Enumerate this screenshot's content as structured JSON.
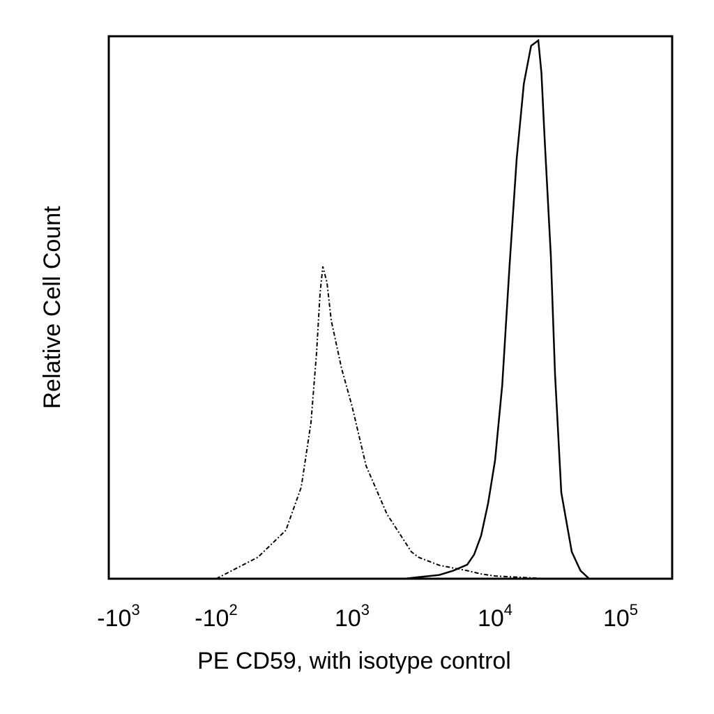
{
  "chart_data": {
    "type": "area",
    "xlabel": "PE CD59, with isotype control",
    "ylabel": "Relative Cell Count",
    "x_scale": "biexponential",
    "ticks": [
      {
        "value": -1000,
        "base": "-10",
        "exp": "3"
      },
      {
        "value": -100,
        "base": "-10",
        "exp": "2"
      },
      {
        "value": 1000,
        "base": "10",
        "exp": "3"
      },
      {
        "value": 10000,
        "base": "10",
        "exp": "4"
      },
      {
        "value": 100000,
        "base": "10",
        "exp": "5"
      }
    ],
    "ylim": [
      0,
      100
    ],
    "grid": false,
    "legend": "none",
    "series": [
      {
        "style": "dashed",
        "color": "#000000",
        "points": [
          [
            -100,
            0
          ],
          [
            0,
            4
          ],
          [
            100,
            9
          ],
          [
            200,
            17
          ],
          [
            300,
            29
          ],
          [
            400,
            42
          ],
          [
            500,
            53
          ],
          [
            600,
            58
          ],
          [
            700,
            55
          ],
          [
            800,
            48
          ],
          [
            900,
            39
          ],
          [
            1000,
            32
          ],
          [
            1200,
            21
          ],
          [
            1500,
            12
          ],
          [
            2000,
            7
          ],
          [
            2500,
            5
          ],
          [
            3000,
            4
          ],
          [
            4000,
            2.5
          ],
          [
            5000,
            2
          ],
          [
            6000,
            1.5
          ],
          [
            8000,
            0.9
          ],
          [
            10000,
            0.5
          ],
          [
            15000,
            0.15
          ],
          [
            20000,
            0
          ]
        ]
      },
      {
        "style": "solid",
        "color": "#000000",
        "points": [
          [
            2000,
            0
          ],
          [
            3000,
            0.3
          ],
          [
            4000,
            0.7
          ],
          [
            5000,
            1.5
          ],
          [
            6000,
            2.6
          ],
          [
            7000,
            4.5
          ],
          [
            8000,
            8
          ],
          [
            9000,
            14
          ],
          [
            10000,
            22
          ],
          [
            11000,
            36
          ],
          [
            12000,
            58
          ],
          [
            13000,
            78
          ],
          [
            14000,
            92
          ],
          [
            15000,
            99
          ],
          [
            16000,
            100
          ],
          [
            17000,
            94
          ],
          [
            18000,
            82
          ],
          [
            20000,
            60
          ],
          [
            22000,
            38
          ],
          [
            25000,
            16
          ],
          [
            30000,
            5
          ],
          [
            35000,
            1.5
          ],
          [
            40000,
            0
          ]
        ]
      }
    ]
  }
}
